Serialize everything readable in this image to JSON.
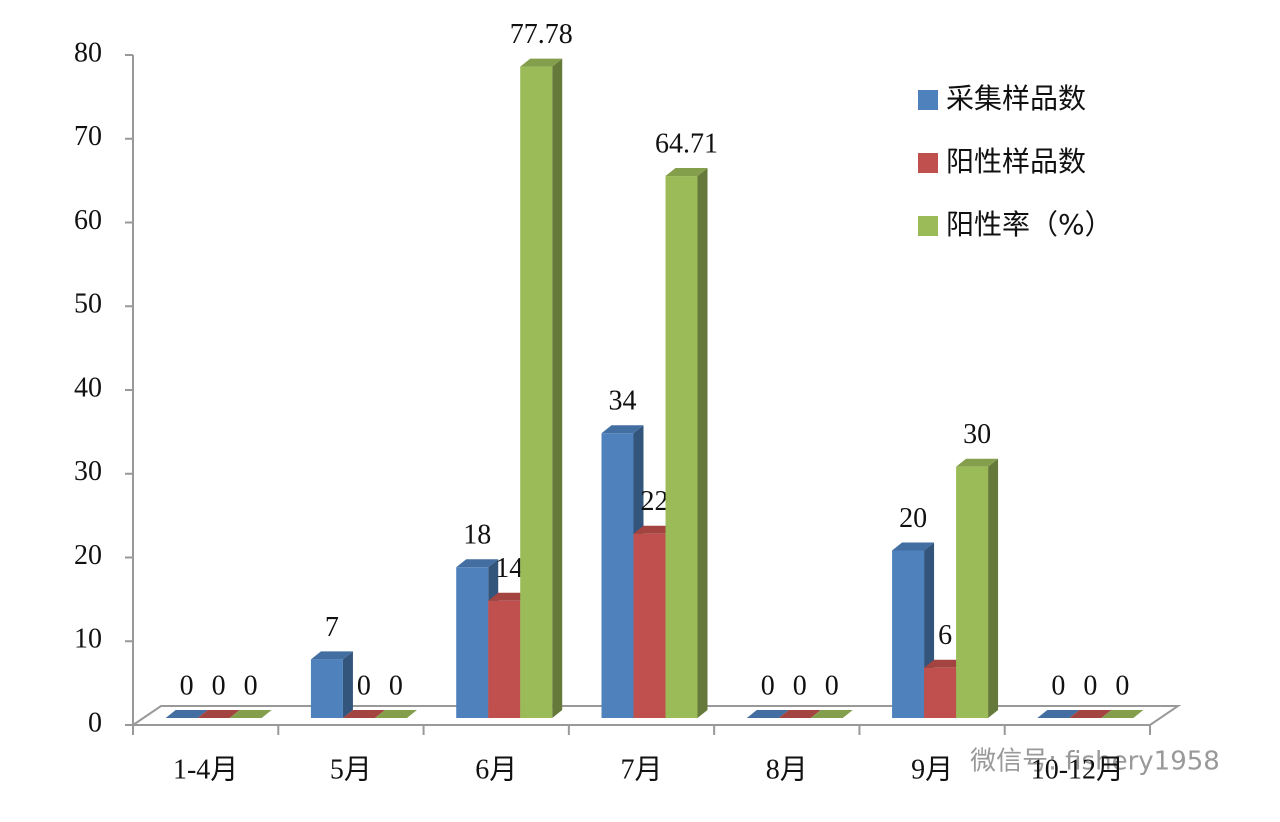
{
  "chart_data": {
    "type": "bar3d",
    "categories": [
      "1-4月",
      "5月",
      "6月",
      "7月",
      "8月",
      "9月",
      "10-12月"
    ],
    "series": [
      {
        "name": "采集样品数",
        "color": "#4f81bd",
        "values": [
          0,
          7,
          18,
          34,
          0,
          20,
          0
        ]
      },
      {
        "name": "阳性样品数",
        "color": "#c0504d",
        "values": [
          0,
          0,
          14,
          22,
          0,
          6,
          0
        ]
      },
      {
        "name": "阳性率（%）",
        "color": "#9bbb59",
        "values": [
          0,
          0,
          77.78,
          64.71,
          0,
          30,
          0
        ]
      }
    ],
    "ylim": [
      0,
      80
    ],
    "yticks": [
      0,
      10,
      20,
      30,
      40,
      50,
      60,
      70,
      80
    ],
    "grid": false,
    "legend": "top-right"
  },
  "watermark": "微信号: fishery1958"
}
